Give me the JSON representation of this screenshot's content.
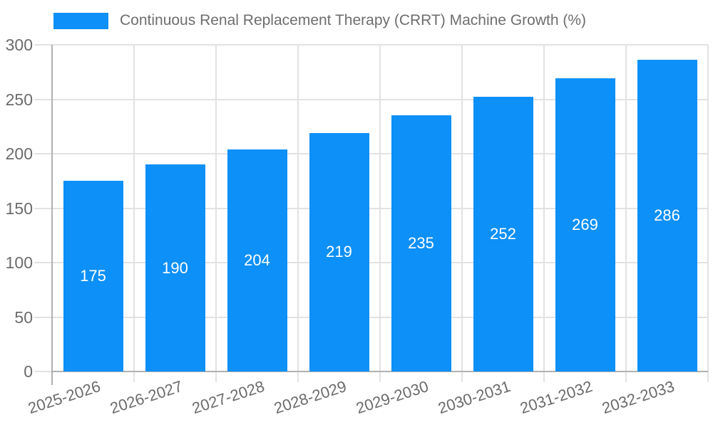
{
  "legend": {
    "label": "Continuous Renal Replacement Therapy (CRRT) Machine Growth (%)",
    "swatch_color": "#0d90f7"
  },
  "chart_data": {
    "type": "bar",
    "title": "",
    "xlabel": "",
    "ylabel": "",
    "categories": [
      "2025-2026",
      "2026-2027",
      "2027-2028",
      "2028-2029",
      "2029-2030",
      "2030-2031",
      "2031-2032",
      "2032-2033"
    ],
    "series": [
      {
        "name": "Continuous Renal Replacement Therapy (CRRT) Machine Growth (%)",
        "values": [
          175,
          190,
          204,
          219,
          235,
          252,
          269,
          286
        ]
      }
    ],
    "value_labels": [
      "175",
      "190",
      "204",
      "219",
      "235",
      "252",
      "269",
      "286"
    ],
    "ylim": [
      0,
      300
    ],
    "yticks": [
      0,
      50,
      100,
      150,
      200,
      250,
      300
    ],
    "grid": true,
    "legend_position": "top-left",
    "x_label_rotation_deg": -18,
    "colors": {
      "bar": "#0d90f7",
      "bar_value_text": "#ffffff",
      "axis_text": "#6b6b6b",
      "legend_text": "#6e6e6e",
      "gridline": "#e2e2e2",
      "axis_spine": "#b0b0b0"
    }
  }
}
